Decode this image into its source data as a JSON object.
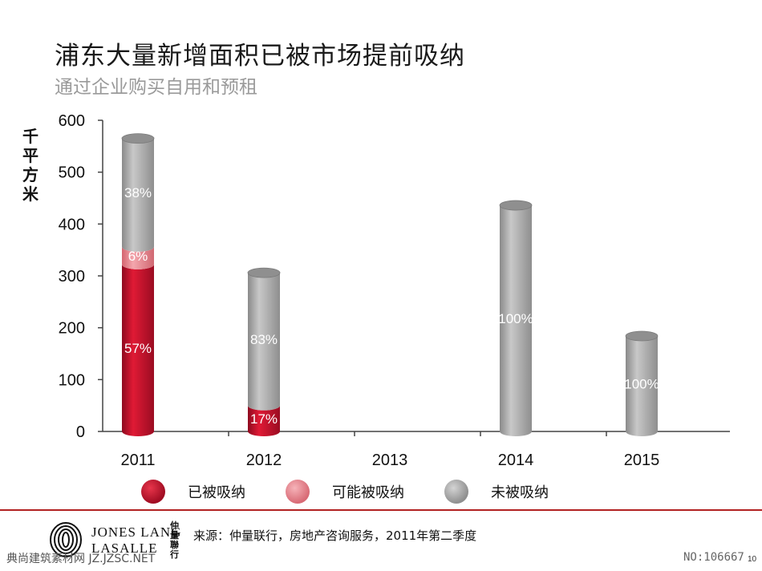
{
  "slide": {
    "title": "浦东大量新增面积已被市场提前吸纳",
    "subtitle": "通过企业购买自用和预租",
    "source": "来源：仲量联行，房地产咨询服务，2011年第二季度",
    "logo_line1": "JONES LANG",
    "logo_line2": "LASALLE",
    "logo_cjk": "仲量聯行",
    "watermark": "典尚建筑素材网 JZ.JZSC.NET",
    "doc_no": "NO:106667",
    "page_number": "10"
  },
  "colors": {
    "absorbed": "#c8102e",
    "possible": "#e8868f",
    "unabsorbed": "#a9a9a9",
    "footer_rule": "#b22222"
  },
  "chart_data": {
    "type": "bar",
    "stacked": true,
    "style": "3d-cylinder",
    "title": "",
    "ylabel": "千平方米",
    "xlabel": "",
    "ylim": [
      0,
      600
    ],
    "yticks": [
      0,
      100,
      200,
      300,
      400,
      500,
      600
    ],
    "categories": [
      "2011",
      "2012",
      "2013",
      "2014",
      "2015"
    ],
    "series": [
      {
        "name": "已被吸纳",
        "color": "#c8102e",
        "values": [
          322,
          50,
          0,
          0,
          0
        ],
        "labels": [
          "57%",
          "17%",
          "",
          "",
          ""
        ]
      },
      {
        "name": "可能被吸纳",
        "color": "#e8868f",
        "values": [
          34,
          0,
          0,
          0,
          0
        ],
        "labels": [
          "6%",
          "",
          "",
          "",
          ""
        ]
      },
      {
        "name": "未被吸纳",
        "color": "#a9a9a9",
        "values": [
          209,
          256,
          0,
          436,
          184
        ],
        "labels": [
          "38%",
          "83%",
          "",
          "100%",
          "100%"
        ]
      }
    ],
    "grid": false,
    "legend_position": "bottom"
  }
}
